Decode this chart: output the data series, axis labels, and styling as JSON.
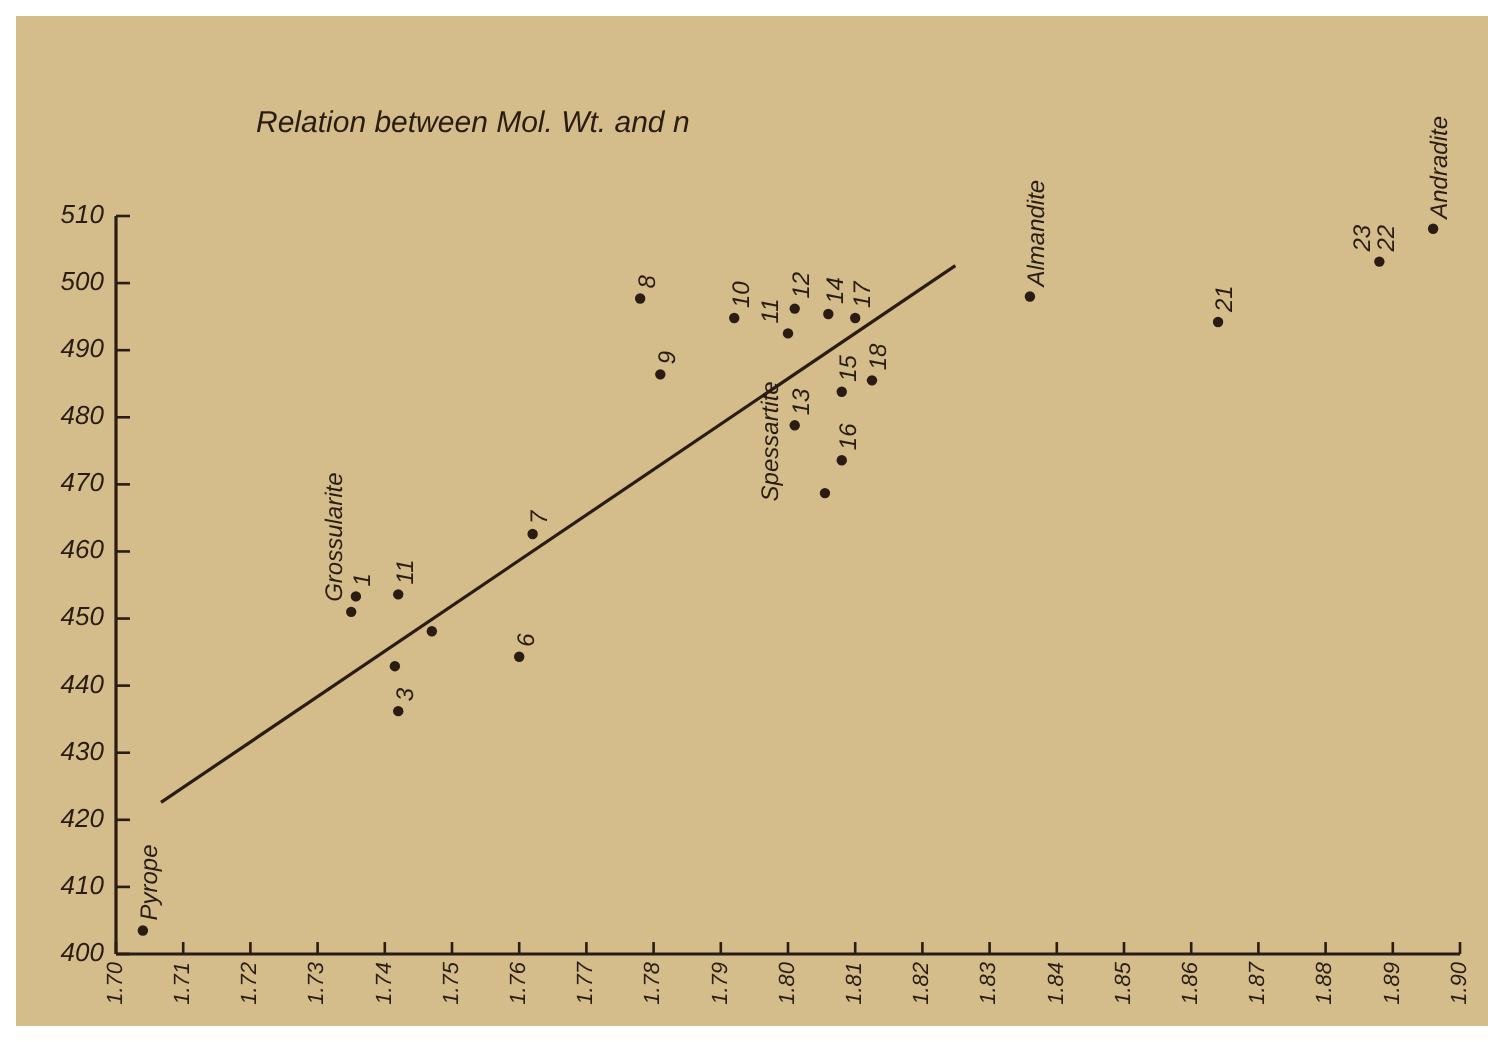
{
  "chart_data": {
    "type": "scatter",
    "title": "Relation between Mol. Wt. and n",
    "xlim": [
      1.7,
      1.9
    ],
    "xticks": [
      {
        "value": 1.7,
        "label": "1.70"
      },
      1.71,
      1.72,
      1.73,
      1.74,
      1.75,
      1.76,
      1.77,
      1.78,
      1.79,
      {
        "value": 1.8,
        "label": "1.80"
      },
      1.81,
      1.82,
      1.83,
      1.84,
      1.85,
      1.86,
      1.87,
      1.88,
      1.89,
      {
        "value": 1.9,
        "label": "1.90"
      }
    ],
    "ylim": [
      400,
      510
    ],
    "yticks": [
      400,
      410,
      420,
      430,
      440,
      450,
      460,
      470,
      480,
      490,
      500,
      510
    ],
    "grid": false,
    "series": [
      {
        "marker": "circle",
        "color": "#2a1c12",
        "x": [
          1.704,
          1.735,
          1.7357,
          1.742,
          1.742,
          1.7415,
          1.747,
          1.76,
          1.762,
          1.778,
          1.781,
          1.792,
          1.8,
          1.801,
          1.801,
          1.806,
          1.808,
          1.808,
          1.8055,
          1.81,
          1.8125,
          1.836,
          1.864,
          1.888,
          1.896
        ],
        "values": [
          403.5,
          451,
          453.3,
          453.6,
          436.2,
          442.9,
          448.1,
          444.3,
          462.6,
          497.7,
          486.4,
          494.8,
          492.5,
          496.2,
          478.8,
          495.4,
          483.8,
          473.6,
          468.7,
          494.8,
          485.5,
          498,
          494.2,
          503.2,
          508.1
        ]
      },
      {
        "type": "line",
        "color": "#2a1c12",
        "x": [
          1.7067,
          1.8249
        ],
        "values": [
          422.6,
          502.6
        ],
        "line_style": "solid"
      }
    ],
    "annotations": [
      {
        "text": "Pyrope",
        "x": 1.704,
        "y": 403.5
      },
      {
        "text": "Grossularite",
        "x": 1.735,
        "y": 451
      },
      {
        "text": "1",
        "x": 1.7357,
        "y": 453.3
      },
      {
        "text": "11",
        "x": 1.742,
        "y": 453.6
      },
      {
        "text": "3",
        "x": 1.742,
        "y": 436.2
      },
      {
        "text": "6",
        "x": 1.76,
        "y": 444.3
      },
      {
        "text": "7",
        "x": 1.762,
        "y": 462.6
      },
      {
        "text": "8",
        "x": 1.778,
        "y": 497.7
      },
      {
        "text": "9",
        "x": 1.781,
        "y": 486.4
      },
      {
        "text": "10",
        "x": 1.792,
        "y": 494.8
      },
      {
        "text": "11",
        "x": 1.8,
        "y": 492.5
      },
      {
        "text": "Spessartite",
        "x": 1.8,
        "y": 492.5
      },
      {
        "text": "12",
        "x": 1.801,
        "y": 496.2
      },
      {
        "text": "13",
        "x": 1.801,
        "y": 478.8
      },
      {
        "text": "14",
        "x": 1.806,
        "y": 495.4
      },
      {
        "text": "15",
        "x": 1.808,
        "y": 483.8
      },
      {
        "text": "16",
        "x": 1.808,
        "y": 473.6
      },
      {
        "text": "17",
        "x": 1.81,
        "y": 494.8
      },
      {
        "text": "18",
        "x": 1.8125,
        "y": 485.5
      },
      {
        "text": "Almandite",
        "x": 1.836,
        "y": 498
      },
      {
        "text": "21",
        "x": 1.864,
        "y": 494.2
      },
      {
        "text": "22",
        "x": 1.888,
        "y": 503.2
      },
      {
        "text": "23",
        "x": 1.888,
        "y": 503.2
      },
      {
        "text": "Andradite",
        "x": 1.896,
        "y": 508.1
      }
    ]
  }
}
